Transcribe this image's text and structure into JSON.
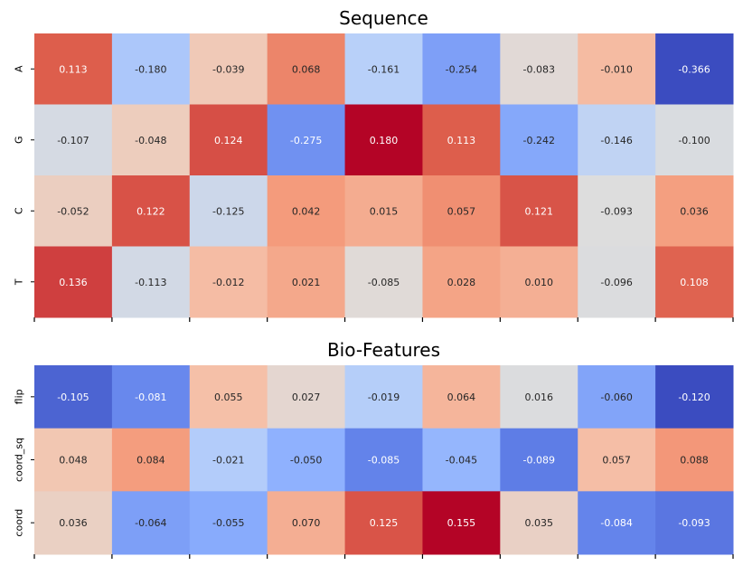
{
  "chart_data": [
    {
      "type": "heatmap",
      "title": "Sequence",
      "rows": [
        "A",
        "G",
        "C",
        "T"
      ],
      "columns": 9,
      "values": [
        [
          0.113,
          -0.18,
          -0.039,
          0.068,
          -0.161,
          -0.254,
          -0.083,
          -0.01,
          -0.366
        ],
        [
          -0.107,
          -0.048,
          0.124,
          -0.275,
          0.18,
          0.113,
          -0.242,
          -0.146,
          -0.1
        ],
        [
          -0.052,
          0.122,
          -0.125,
          0.042,
          0.015,
          0.057,
          0.121,
          -0.093,
          0.036
        ],
        [
          0.136,
          -0.113,
          -0.012,
          0.021,
          -0.085,
          0.028,
          0.01,
          -0.096,
          0.108
        ]
      ],
      "labels": [
        [
          "0.113",
          "-0.180",
          "-0.039",
          "0.068",
          "-0.161",
          "-0.254",
          "-0.083",
          "-0.010",
          "-0.366"
        ],
        [
          "-0.107",
          "-0.048",
          "0.124",
          "-0.275",
          "0.180",
          "0.113",
          "-0.242",
          "-0.146",
          "-0.100"
        ],
        [
          "-0.052",
          "0.122",
          "-0.125",
          "0.042",
          "0.015",
          "0.057",
          "0.121",
          "-0.093",
          "0.036"
        ],
        [
          "0.136",
          "-0.113",
          "-0.012",
          "0.021",
          "-0.085",
          "0.028",
          "0.010",
          "-0.096",
          "0.108"
        ]
      ],
      "colormap": "coolwarm",
      "vmin": -0.366,
      "vmax": 0.18,
      "colorbar": false
    },
    {
      "type": "heatmap",
      "title": "Bio-Features",
      "rows": [
        "flip",
        "coord_sq",
        "coord"
      ],
      "columns": 9,
      "values": [
        [
          -0.105,
          -0.081,
          0.055,
          0.027,
          -0.019,
          0.064,
          0.016,
          -0.06,
          -0.12
        ],
        [
          0.048,
          0.084,
          -0.021,
          -0.05,
          -0.085,
          -0.045,
          -0.089,
          0.057,
          0.088
        ],
        [
          0.036,
          -0.064,
          -0.055,
          0.07,
          0.125,
          0.155,
          0.035,
          -0.084,
          -0.093
        ]
      ],
      "labels": [
        [
          "-0.105",
          "-0.081",
          "0.055",
          "0.027",
          "-0.019",
          "0.064",
          "0.016",
          "-0.060",
          "-0.120"
        ],
        [
          "0.048",
          "0.084",
          "-0.021",
          "-0.050",
          "-0.085",
          "-0.045",
          "-0.089",
          "0.057",
          "0.088"
        ],
        [
          "0.036",
          "-0.064",
          "-0.055",
          "0.070",
          "0.125",
          "0.155",
          "0.035",
          "-0.084",
          "-0.093"
        ]
      ],
      "colormap": "coolwarm",
      "vmin": -0.12,
      "vmax": 0.155,
      "colorbar": false
    }
  ]
}
